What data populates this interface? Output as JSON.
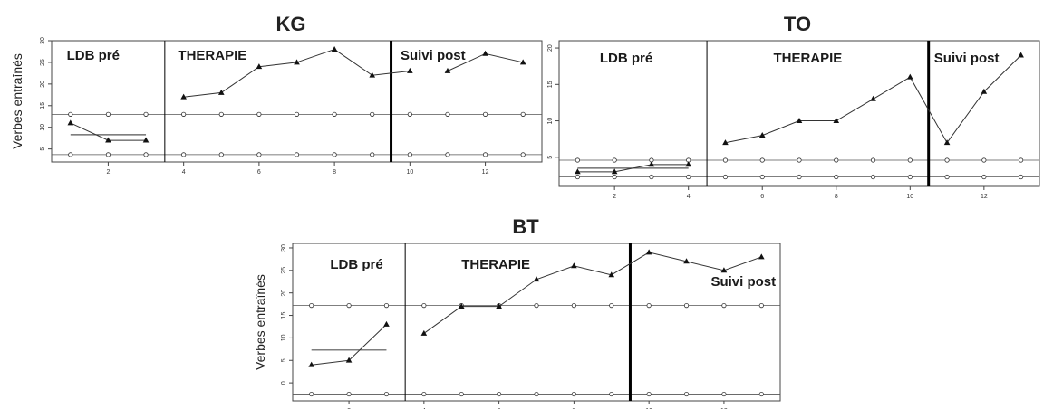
{
  "chart_data": [
    {
      "type": "line",
      "title": "KG",
      "ylabel": "Verbes entraînés",
      "xlim": [
        0.5,
        13.5
      ],
      "ylim": [
        2,
        30
      ],
      "xticks": [
        2,
        4,
        6,
        8,
        10,
        12
      ],
      "yticks": [
        5,
        10,
        15,
        20,
        25,
        30
      ],
      "phases": [
        {
          "label": "LDB pré",
          "x": 0.9
        },
        {
          "label": "THERAPIE",
          "x": 3.85
        },
        {
          "label": "Suivi post",
          "x": 9.75
        }
      ],
      "phase_lines": [
        {
          "x": 3.5,
          "style": "thin"
        },
        {
          "x": 9.5,
          "style": "thick"
        }
      ],
      "band_upper": 13,
      "band_lower": 3.7,
      "baseline_mean": {
        "x": [
          1,
          3
        ],
        "y": 8.3
      },
      "series": [
        {
          "segments": [
            {
              "x": [
                1,
                2,
                3
              ],
              "y": [
                11,
                7,
                7
              ]
            },
            {
              "x": [
                4,
                5,
                6,
                7,
                8,
                9,
                10,
                11,
                12,
                13
              ],
              "y": [
                17,
                18,
                24,
                25,
                28,
                22,
                23,
                23,
                27,
                25
              ]
            }
          ]
        }
      ]
    },
    {
      "type": "line",
      "title": "TO",
      "ylabel": "",
      "xlim": [
        0.5,
        13.5
      ],
      "ylim": [
        1,
        21
      ],
      "xticks": [
        2,
        4,
        6,
        8,
        10,
        12
      ],
      "yticks": [
        5,
        10,
        15,
        20
      ],
      "phases": [
        {
          "label": "LDB pré",
          "x": 1.6
        },
        {
          "label": "THERAPIE",
          "x": 6.3
        },
        {
          "label": "Suivi post",
          "x": 10.65
        }
      ],
      "phase_lines": [
        {
          "x": 4.5,
          "style": "thin"
        },
        {
          "x": 10.5,
          "style": "thick"
        }
      ],
      "band_upper": 4.6,
      "band_lower": 2.3,
      "baseline_mean": {
        "x": [
          1,
          4
        ],
        "y": 3.5
      },
      "series": [
        {
          "segments": [
            {
              "x": [
                1,
                2,
                3,
                4
              ],
              "y": [
                3,
                3,
                4,
                4
              ]
            },
            {
              "x": [
                5,
                6,
                7,
                8,
                9,
                10,
                11,
                12,
                13
              ],
              "y": [
                7,
                8,
                10,
                10,
                13,
                16,
                7,
                14,
                19
              ]
            }
          ]
        }
      ]
    },
    {
      "type": "line",
      "title": "BT",
      "ylabel": "Verbes entraînés",
      "xlim": [
        0.5,
        13.5
      ],
      "ylim": [
        -4,
        31
      ],
      "xticks": [
        2,
        4,
        6,
        8,
        10,
        12
      ],
      "yticks": [
        0,
        5,
        10,
        15,
        20,
        25,
        30
      ],
      "phases": [
        {
          "label": "LDB pré",
          "x": 1.5
        },
        {
          "label": "THERAPIE",
          "x": 5.0
        },
        {
          "label": "Suivi post",
          "x": 11.65,
          "yval": 21.5
        }
      ],
      "phase_lines": [
        {
          "x": 3.5,
          "style": "thin"
        },
        {
          "x": 9.5,
          "style": "thick"
        }
      ],
      "band_upper": 17.2,
      "band_lower": -2.5,
      "baseline_mean": {
        "x": [
          1,
          3
        ],
        "y": 7.3
      },
      "series": [
        {
          "segments": [
            {
              "x": [
                1,
                2,
                3
              ],
              "y": [
                4,
                5,
                13
              ]
            },
            {
              "x": [
                4,
                5,
                6,
                7,
                8,
                9,
                10,
                11,
                12,
                13
              ],
              "y": [
                11,
                17,
                17,
                23,
                26,
                24,
                29,
                27,
                25,
                28
              ]
            }
          ]
        }
      ]
    }
  ]
}
